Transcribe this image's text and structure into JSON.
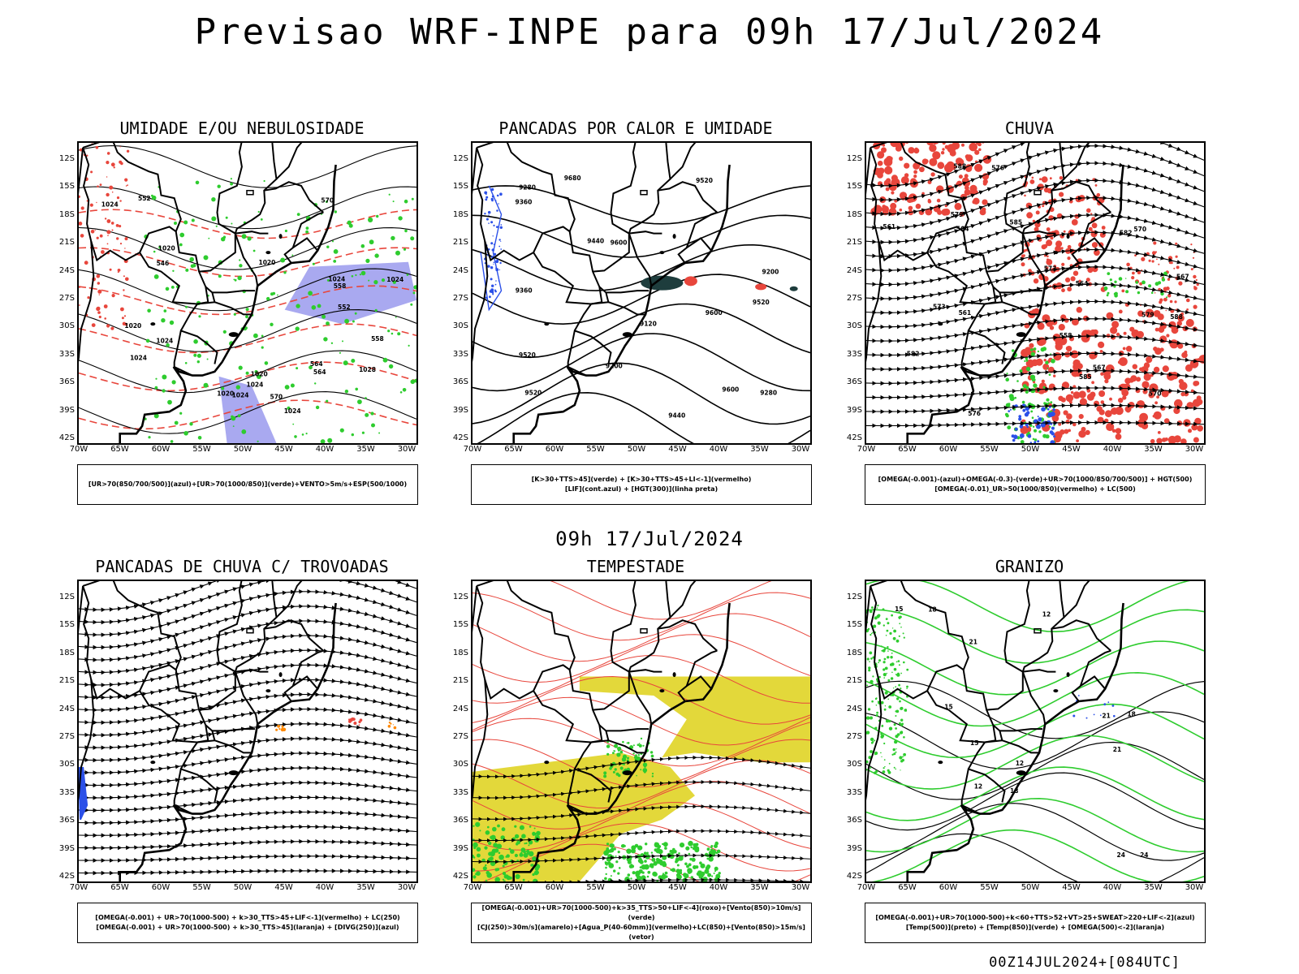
{
  "header": {
    "title": "Previsao WRF-INPE  para 09h 17/Jul/2024"
  },
  "middle": {
    "subtitle": "09h 17/Jul/2024"
  },
  "footer": {
    "run": "00Z14JUL2024+[084UTC]"
  },
  "axes": {
    "lat_ticks": [
      "12S",
      "15S",
      "18S",
      "21S",
      "24S",
      "27S",
      "30S",
      "33S",
      "36S",
      "39S",
      "42S"
    ],
    "lon_ticks": [
      "70W",
      "65W",
      "60W",
      "55W",
      "50W",
      "45W",
      "40W",
      "35W",
      "30W"
    ]
  },
  "colors": {
    "red": "#e8463c",
    "green": "#2ecc2e",
    "blue": "#2b50e8",
    "lavender": "#a9a9f0",
    "yellow": "#e3d83a",
    "darkteal": "#1e3d3d",
    "orange": "#ff8800"
  },
  "panels": [
    {
      "title": "UMIDADE E/OU NEBULOSIDADE",
      "legend": [
        "[UR>70(850/700/500)](azul)+[UR>70(1000/850)](verde)+VENTO>5m/s+ESP(500/1000)"
      ],
      "contour_labels": [
        "1020",
        "1020",
        "1020",
        "1024",
        "1024",
        "1024",
        "1024",
        "1020",
        "1024",
        "1020",
        "1024",
        "1028",
        "1024",
        "1024",
        "570",
        "570",
        "564",
        "564",
        "558",
        "558",
        "552",
        "552",
        "546"
      ]
    },
    {
      "title": "PANCADAS POR CALOR E UMIDADE",
      "legend": [
        "[K>30+TTS>45](verde) + [K>30+TTS>45+LI<-1](vermelho)",
        "[LIF](cont.azul) + [HGT(300)](linha preta)"
      ],
      "contour_labels": [
        "9600",
        "9520",
        "9520",
        "9680",
        "9600",
        "9600",
        "9520",
        "9520",
        "9440",
        "9440",
        "9360",
        "9360",
        "9280",
        "9280",
        "9200",
        "9200",
        "9120"
      ]
    },
    {
      "title": "CHUVA",
      "legend": [
        "[OMEGA(-0.001)-(azul)+OMEGA(-0.3)-(verde)+UR>70(1000/850/700/500)] + HGT(500)",
        "[OMEGA(-0.01)_UR>50(1000/850)(vermelho) + LC(500)"
      ],
      "contour_labels": [
        "588",
        "585",
        "582",
        "585",
        "579",
        "576",
        "573",
        "570",
        "567",
        "564",
        "561",
        "588",
        "582",
        "579",
        "576",
        "573",
        "570",
        "567",
        "564",
        "561",
        "558"
      ]
    },
    {
      "title": "PANCADAS DE CHUVA C/ TROVOADAS",
      "legend": [
        "[OMEGA(-0.001) + UR>70(1000-500) + k>30_TTS>45+LIF<-1](vermelho) + LC(250)",
        "[OMEGA(-0.001) + UR>70(1000-500) + k>30_TTS>45](laranja) + [DIVG(250)](azul)"
      ],
      "contour_labels": []
    },
    {
      "title": "TEMPESTADE",
      "legend": [
        "[OMEGA(-0.001)+UR>70(1000-500)+k>35_TTS>50+LIF<-4](roxo)+[Vento(850)>10m/s](verde)",
        "[CJ(250)>30m/s](amarelo)+[Agua_P(40-60mm)](vermelho)+LC(850)+[Vento(850)>15m/s](vetor)"
      ],
      "contour_labels": []
    },
    {
      "title": "GRANIZO",
      "legend": [
        "[OMEGA(-0.001)+UR>70(1000-500)+k<60+TTS>52+VT>25+SWEAT>220+LIF<-2](azul)",
        "[Temp(500)](preto) + [Temp(850)](verde) + [OMEGA(500)<-2](laranja)"
      ],
      "contour_labels": [
        "12",
        "15",
        "18",
        "21",
        "24",
        "21",
        "18",
        "15",
        "12",
        "21",
        "18",
        "12",
        "15",
        "24"
      ]
    }
  ]
}
